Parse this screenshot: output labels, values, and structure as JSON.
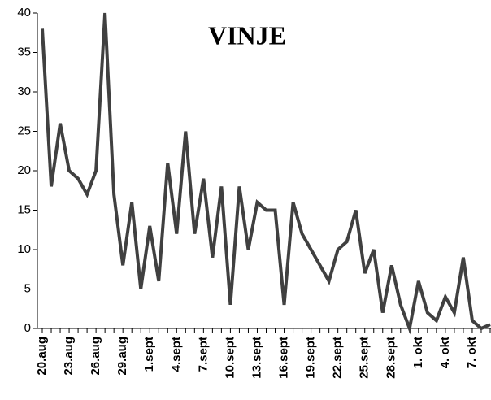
{
  "chart_data": {
    "type": "line",
    "title": "VINJE",
    "categories": [
      "20.aug",
      null,
      null,
      "23.aug",
      null,
      null,
      "26.aug",
      null,
      null,
      "29.aug",
      null,
      null,
      "1.sept",
      null,
      null,
      "4.sept",
      null,
      null,
      "7.sept",
      null,
      null,
      "10.sept",
      null,
      null,
      "13.sept",
      null,
      null,
      "16.sept",
      null,
      null,
      "19.sept",
      null,
      null,
      "22.sept",
      null,
      null,
      "25.sept",
      null,
      null,
      "28.sept",
      null,
      null,
      "1. okt",
      null,
      null,
      "4. okt",
      null,
      null,
      "7. okt",
      null,
      null
    ],
    "series": [
      {
        "color": "#404040",
        "values": [
          38,
          18,
          26,
          20,
          19,
          17,
          20,
          40,
          17,
          8,
          16,
          5,
          13,
          6,
          21,
          12,
          25,
          12,
          19,
          9,
          18,
          3,
          18,
          10,
          16,
          15,
          15,
          3,
          16,
          12,
          10,
          8,
          6,
          10,
          11,
          15,
          7,
          10,
          2,
          8,
          3,
          0,
          6,
          2,
          1,
          4,
          2,
          9,
          1,
          0,
          0.5
        ]
      }
    ],
    "ylim": [
      0,
      40
    ],
    "yticks": [
      0,
      5,
      10,
      15,
      20,
      25,
      30,
      35,
      40
    ]
  }
}
